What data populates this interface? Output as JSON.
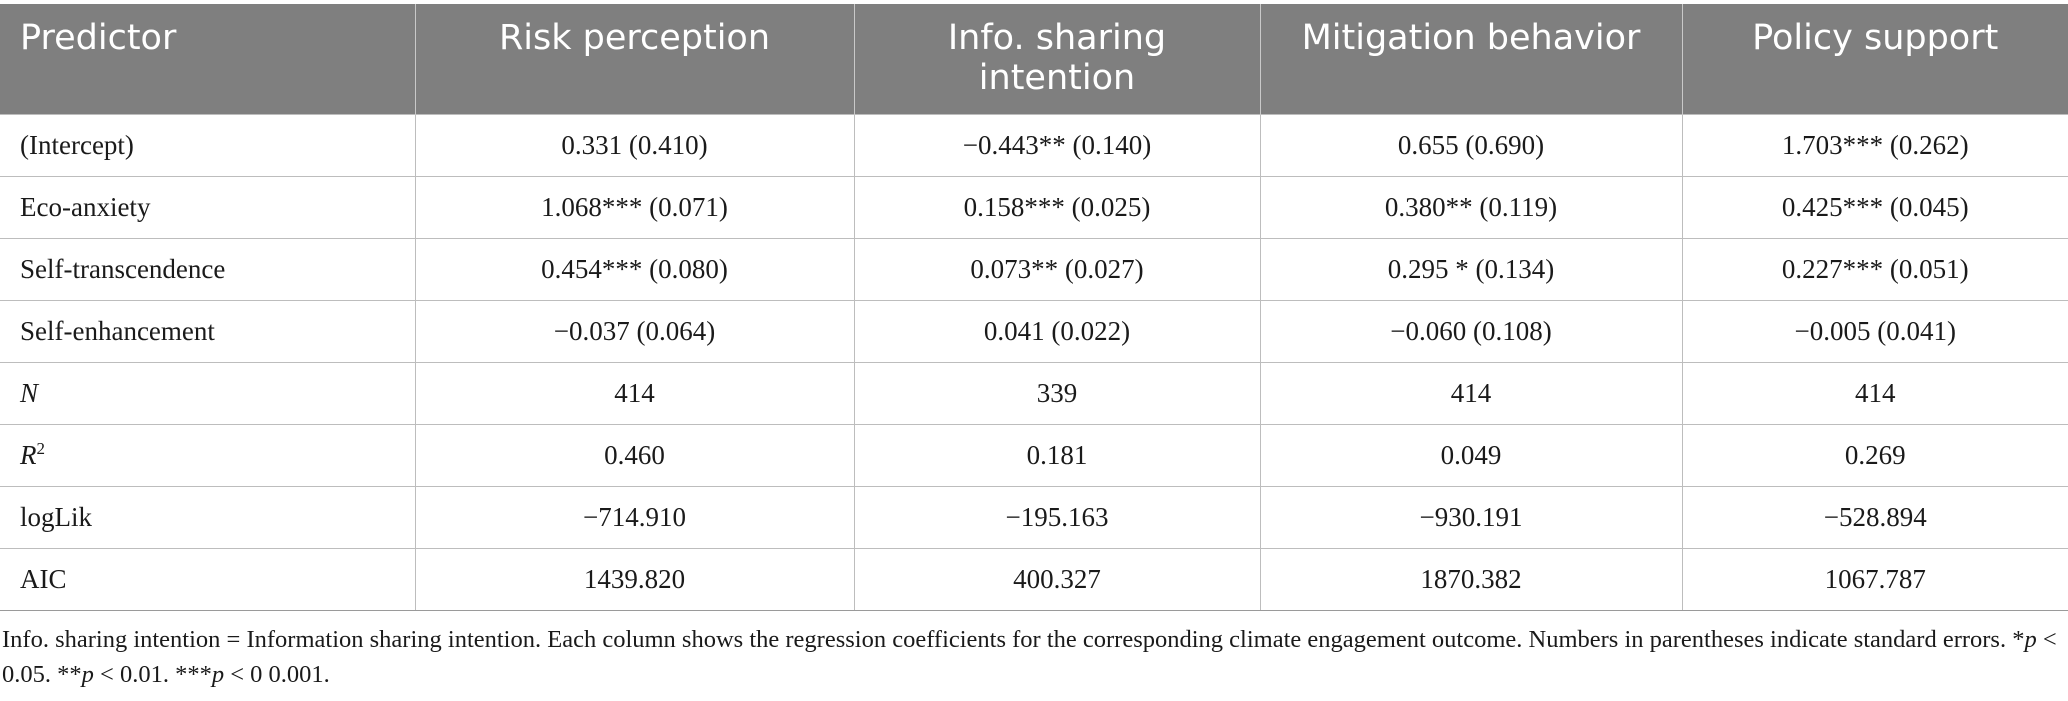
{
  "table": {
    "headers": [
      "Predictor",
      "Risk perception",
      "Info. sharing intention",
      "Mitigation behavior",
      "Policy support"
    ],
    "rows": [
      {
        "predictor": "(Intercept)",
        "cells": [
          "0.331 (0.410)",
          "−0.443** (0.140)",
          "0.655 (0.690)",
          "1.703*** (0.262)"
        ]
      },
      {
        "predictor": "Eco-anxiety",
        "cells": [
          "1.068*** (0.071)",
          "0.158*** (0.025)",
          "0.380** (0.119)",
          "0.425*** (0.045)"
        ]
      },
      {
        "predictor": "Self-transcendence",
        "cells": [
          "0.454*** (0.080)",
          "0.073** (0.027)",
          "0.295 * (0.134)",
          "0.227*** (0.051)"
        ]
      },
      {
        "predictor": "Self-enhancement",
        "cells": [
          "−0.037 (0.064)",
          "0.041 (0.022)",
          "−0.060 (0.108)",
          "−0.005 (0.041)"
        ]
      },
      {
        "predictor": "N",
        "cells": [
          "414",
          "339",
          "414",
          "414"
        ]
      },
      {
        "predictor": "R",
        "predictor_sup": "2",
        "cells": [
          "0.460",
          "0.181",
          "0.049",
          "0.269"
        ]
      },
      {
        "predictor": "logLik",
        "cells": [
          "−714.910",
          "−195.163",
          "−930.191",
          "−528.894"
        ]
      },
      {
        "predictor": "AIC",
        "cells": [
          "1439.820",
          "400.327",
          "1870.382",
          "1067.787"
        ]
      }
    ]
  },
  "footnote": {
    "part1": "Info. sharing intention = Information sharing intention. Each column shows the regression coefficients for the corresponding climate engagement outcome. Numbers in parentheses indicate standard errors. *",
    "p1": "p",
    "part2": " < 0.05. **",
    "p2": "p",
    "part3": " < 0.01. ***",
    "p3": "p",
    "part4": " < 0 0.001."
  }
}
